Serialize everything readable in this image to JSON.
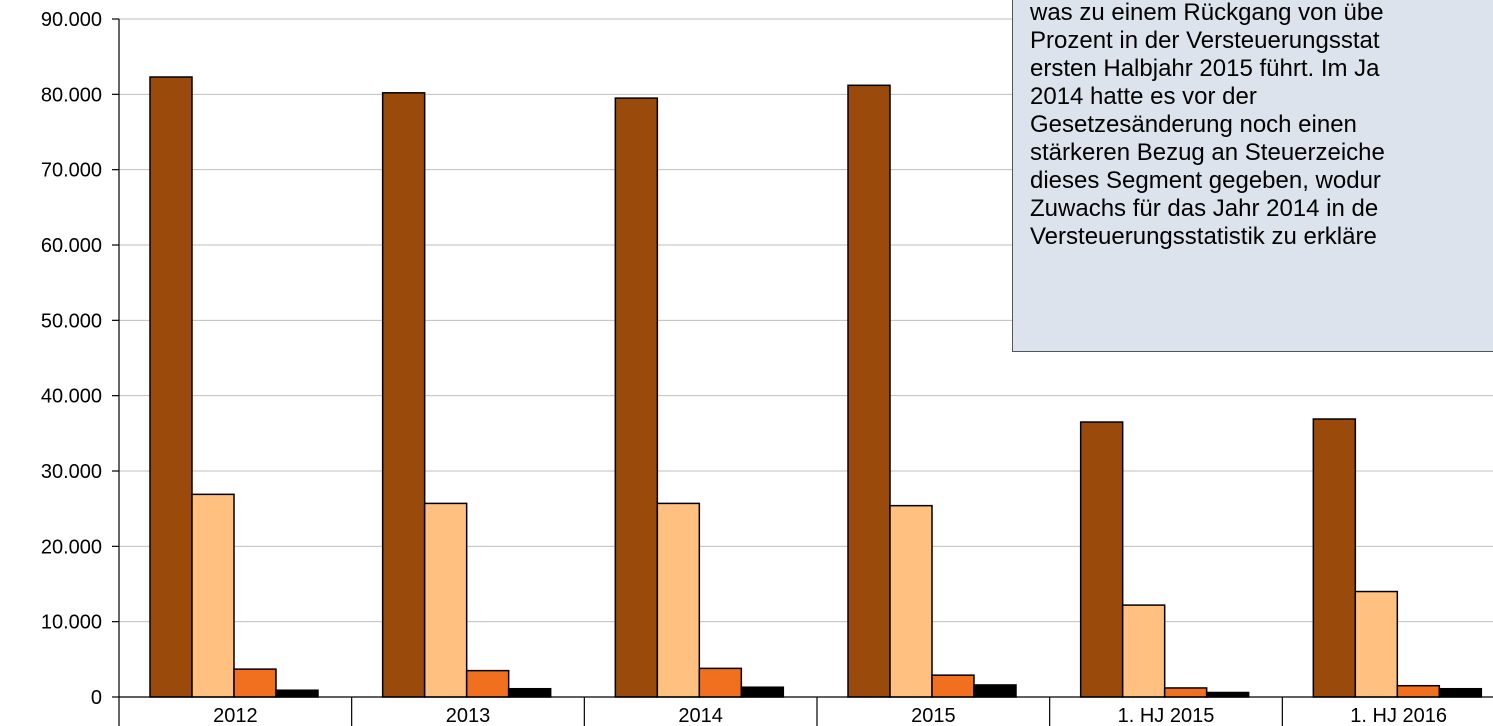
{
  "chart_data": {
    "type": "bar",
    "categories": [
      "2012",
      "2013",
      "2014",
      "2015",
      "1. HJ 2015",
      "1. HJ 2016"
    ],
    "series": [
      {
        "values": [
          82300,
          80200,
          79500,
          81200,
          36500,
          36900
        ],
        "color": "#9a4a0a"
      },
      {
        "values": [
          26900,
          25700,
          25700,
          25400,
          12200,
          14000
        ],
        "color": "#ffc080"
      },
      {
        "values": [
          3700,
          3500,
          3800,
          2900,
          1200,
          1500
        ],
        "color": "#f07020"
      },
      {
        "values": [
          900,
          1100,
          1300,
          1600,
          600,
          1100
        ],
        "color": "#000000"
      }
    ],
    "ylim": [
      0,
      90000
    ],
    "yticks": [
      "0",
      "10.000",
      "20.000",
      "30.000",
      "40.000",
      "50.000",
      "60.000",
      "70.000",
      "80.000",
      "90.000"
    ],
    "ytick_values": [
      0,
      10000,
      20000,
      30000,
      40000,
      50000,
      60000,
      70000,
      80000,
      90000
    ],
    "grid": true,
    "annotation_lines": [
      "was zu einem Rückgang von übe",
      "Prozent in der Versteuerungsstat",
      "ersten Halbjahr 2015 führt. Im Ja",
      "2014 hatte es vor der",
      "Gesetzesänderung noch einen",
      "stärkeren Bezug an Steuerzeiche",
      "dieses Segment gegeben, wodur",
      "Zuwachs für das Jahr 2014 in de",
      "Versteuerungsstatistik zu erkläre"
    ]
  }
}
